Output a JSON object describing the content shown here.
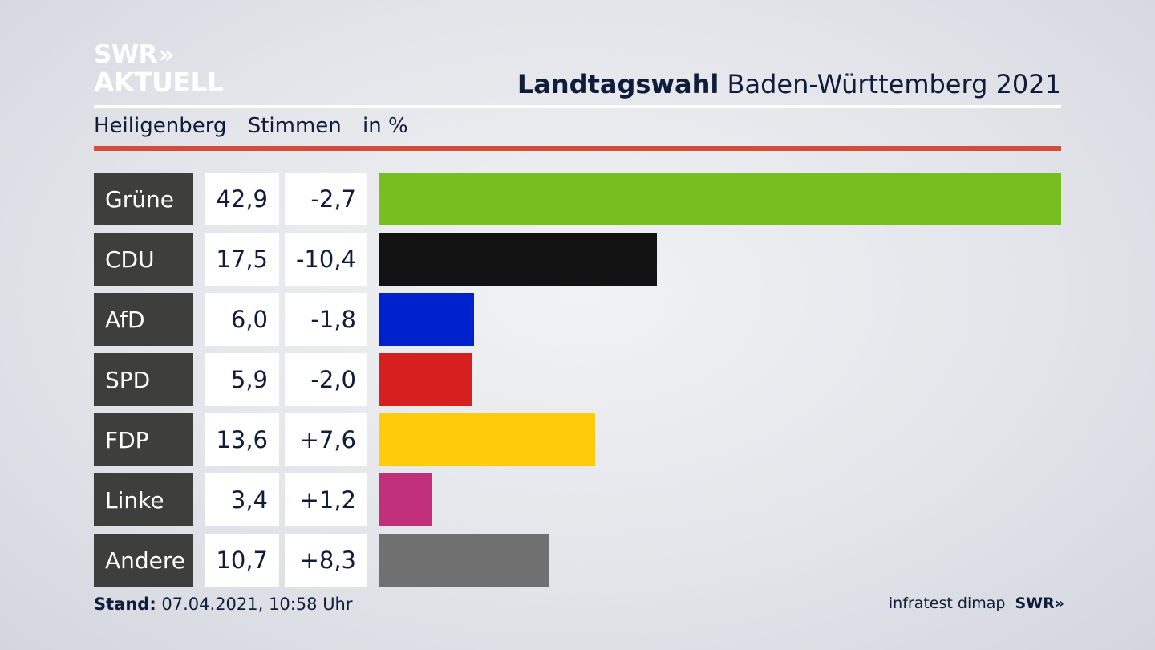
{
  "logo": {
    "line1": "SWR",
    "chevrons": "»",
    "line2": "AKTUELL"
  },
  "header": {
    "title_bold": "Landtagswahl",
    "title_rest": "Baden-Württemberg 2021"
  },
  "subheader": {
    "location": "Heiligenberg",
    "measure": "Stimmen",
    "unit": "in %"
  },
  "chart_data": {
    "type": "bar",
    "orientation": "horizontal",
    "categories": [
      "Grüne",
      "CDU",
      "AfD",
      "SPD",
      "FDP",
      "Linke",
      "Andere"
    ],
    "values": [
      42.9,
      17.5,
      6.0,
      5.9,
      13.6,
      3.4,
      10.7
    ],
    "value_labels": [
      "42,9",
      "17,5",
      "6,0",
      "5,9",
      "13,6",
      "3,4",
      "10,7"
    ],
    "diff_labels": [
      "-2,7",
      "-10,4",
      "-1,8",
      "-2,0",
      "+7,6",
      "+1,2",
      "+8,3"
    ],
    "diffs": [
      -2.7,
      -10.4,
      -1.8,
      -2.0,
      7.6,
      1.2,
      8.3
    ],
    "colors": [
      "#78be1e",
      "#121212",
      "#0022cc",
      "#d61f1f",
      "#ffcb0a",
      "#c1307a",
      "#707070"
    ],
    "xlim": [
      0,
      42.9
    ]
  },
  "footer": {
    "stand_label": "Stand:",
    "stand_value": "07.04.2021, 10:58 Uhr",
    "source": "infratest dimap",
    "brand": "SWR",
    "brand_chevrons": "»"
  }
}
